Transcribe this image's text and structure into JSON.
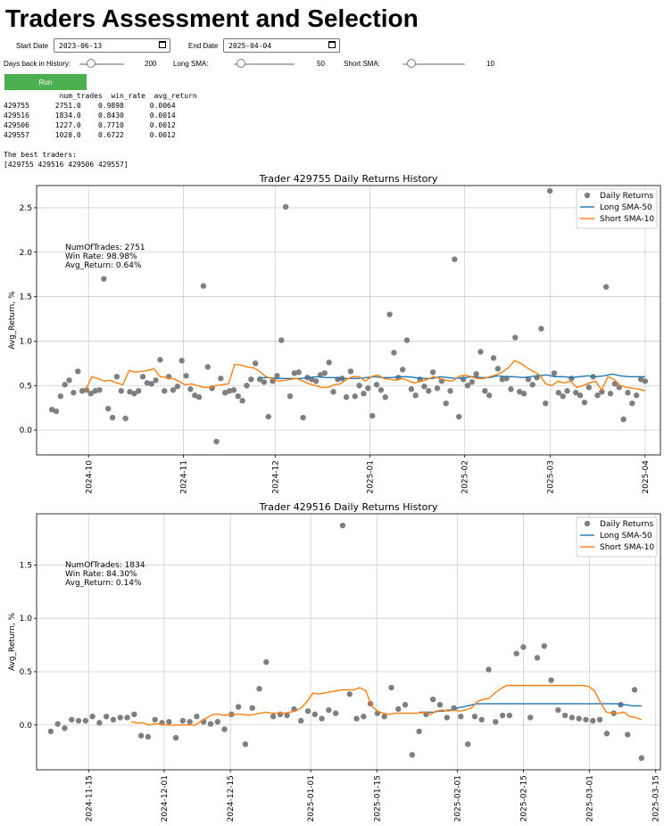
{
  "page": {
    "title": "Traders Assessment and Selection"
  },
  "controls": {
    "start_date_label": "Start Date",
    "start_date_value": "2023-06-13",
    "end_date_label": "End Date",
    "end_date_value": "2025-04-04",
    "days_back_label": "Days back in History:",
    "days_back_value": "200",
    "days_back_fraction": 0.2,
    "long_sma_label": "Long SMA:",
    "long_sma_value": "50",
    "long_sma_fraction": 0.05,
    "short_sma_label": "Short SMA:",
    "short_sma_value": "10",
    "short_sma_fraction": 0.09,
    "run_label": "Run"
  },
  "output": {
    "header": "             num_trades  win_rate  avg_return",
    "rows": [
      "429755      2751.0    0.9898      0.0064",
      "429516      1834.0    0.8430      0.0014",
      "429506      1227.0    0.7710      0.0012",
      "429557      1028.0    0.6722      0.0012"
    ],
    "best_label": "The best traders:",
    "best_value": "[429755 429516 429506 429557]"
  },
  "colors": {
    "scatter": "#7f7f7f",
    "long_sma": "#1f77b4",
    "short_sma": "#ff7f0e",
    "grid": "#cfcfcf",
    "run_button": "#4caf50"
  },
  "chart_data": [
    {
      "type": "scatter",
      "title": "Trader 429755 Daily Returns History",
      "ylabel": "Avg_Return, %",
      "xlabel": "",
      "x_start": "2024-09-19",
      "x_end": "2025-04-01",
      "xlim": [
        "2024-09-14",
        "2025-04-06"
      ],
      "ylim": [
        -0.28,
        2.75
      ],
      "yticks": [
        0.0,
        0.5,
        1.0,
        1.5,
        2.0,
        2.5
      ],
      "ytick_labels": [
        "0.0",
        "0.5",
        "1.0",
        "1.5",
        "2.0",
        "2.5"
      ],
      "xticks": [
        "2024-10-01",
        "2024-11-01",
        "2024-12-01",
        "2025-01-01",
        "2025-02-01",
        "2025-03-01",
        "2025-04-01"
      ],
      "xtick_labels": [
        "2024-10",
        "2024-11",
        "2024-12",
        "2025-01",
        "2025-02",
        "2025-03",
        "2025-04"
      ],
      "grid": true,
      "legend_position": "top-right",
      "legend": [
        "Daily Returns",
        "Long SMA-50",
        "Short SMA-10"
      ],
      "annotation": [
        "NumOfTrades: 2751",
        "Win Rate:  98.98%",
        "Avg_Return:  0.64%"
      ],
      "series": [
        {
          "name": "Daily Returns",
          "kind": "scatter",
          "values": [
            0.23,
            0.21,
            0.38,
            0.51,
            0.56,
            0.42,
            0.66,
            0.44,
            0.45,
            0.41,
            0.44,
            0.45,
            1.7,
            0.24,
            0.14,
            0.6,
            0.44,
            0.13,
            0.43,
            0.41,
            0.44,
            0.6,
            0.53,
            0.52,
            0.56,
            0.79,
            0.44,
            0.6,
            0.45,
            0.49,
            0.78,
            0.61,
            0.46,
            0.39,
            0.37,
            1.62,
            0.71,
            0.47,
            -0.13,
            0.58,
            0.42,
            0.44,
            0.45,
            0.38,
            0.33,
            0.5,
            0.57,
            0.75,
            0.57,
            0.54,
            0.15,
            0.55,
            0.61,
            1.01,
            2.51,
            0.38,
            0.64,
            0.65,
            0.14,
            0.59,
            0.57,
            0.55,
            0.62,
            0.64,
            0.76,
            0.43,
            0.57,
            0.58,
            0.37,
            0.66,
            0.38,
            0.5,
            0.41,
            0.47,
            0.16,
            0.51,
            0.45,
            0.37,
            1.3,
            0.87,
            0.59,
            0.68,
            1.01,
            0.46,
            0.39,
            0.57,
            0.49,
            0.44,
            0.65,
            0.47,
            0.55,
            0.3,
            0.44,
            1.92,
            0.15,
            0.57,
            0.5,
            0.54,
            0.63,
            0.88,
            0.44,
            0.39,
            0.81,
            0.69,
            0.57,
            0.58,
            0.46,
            1.04,
            0.43,
            0.41,
            0.57,
            0.51,
            0.59,
            1.14,
            0.3,
            2.69,
            0.64,
            0.42,
            0.38,
            0.44,
            0.58,
            0.42,
            0.39,
            0.31,
            0.48,
            0.6,
            0.39,
            0.43,
            1.61,
            0.41,
            0.52,
            0.48,
            0.12,
            0.42,
            0.3,
            0.39,
            0.57,
            0.55
          ]
        },
        {
          "name": "Long SMA-50",
          "kind": "line",
          "x_start": "2024-11-26",
          "x_end": "2025-04-01",
          "values": [
            0.59,
            0.59,
            0.58,
            0.58,
            0.58,
            0.58,
            0.59,
            0.6,
            0.59,
            0.59,
            0.58,
            0.58,
            0.58,
            0.59,
            0.6,
            0.59,
            0.59,
            0.6,
            0.6,
            0.59,
            0.58,
            0.58,
            0.6,
            0.59,
            0.58,
            0.59,
            0.6,
            0.59,
            0.59,
            0.61,
            0.6,
            0.6,
            0.59,
            0.6,
            0.61,
            0.62,
            0.6,
            0.6,
            0.59,
            0.6,
            0.61,
            0.6,
            0.61,
            0.63,
            0.61,
            0.6,
            0.6,
            0.6
          ]
        },
        {
          "name": "Short SMA-10",
          "kind": "line",
          "x_start": "2024-09-30",
          "values": [
            0.44,
            0.6,
            0.58,
            0.55,
            0.56,
            0.53,
            0.51,
            0.67,
            0.65,
            0.66,
            0.67,
            0.69,
            0.6,
            0.59,
            0.58,
            0.55,
            0.51,
            0.52,
            0.5,
            0.48,
            0.48,
            0.5,
            0.51,
            0.52,
            0.74,
            0.73,
            0.71,
            0.7,
            0.66,
            0.6,
            0.58,
            0.55,
            0.56,
            0.57,
            0.58,
            0.55,
            0.52,
            0.5,
            0.48,
            0.48,
            0.51,
            0.52,
            0.57,
            0.6,
            0.6,
            0.55,
            0.6,
            0.62,
            0.58,
            0.57,
            0.56,
            0.58,
            0.55,
            0.53,
            0.55,
            0.57,
            0.6,
            0.58,
            0.56,
            0.55,
            0.6,
            0.62,
            0.6,
            0.58,
            0.58,
            0.6,
            0.62,
            0.65,
            0.7,
            0.78,
            0.75,
            0.7,
            0.66,
            0.62,
            0.52,
            0.5,
            0.55,
            0.53,
            0.55,
            0.48,
            0.5,
            0.53,
            0.55,
            0.45,
            0.6,
            0.57,
            0.5,
            0.48,
            0.47,
            0.46,
            0.44
          ]
        }
      ]
    },
    {
      "type": "scatter",
      "title": "Trader 429516 Daily Returns History",
      "ylabel": "Avg_Return, %",
      "xlabel": "",
      "x_start": "2024-11-07",
      "x_end": "2025-03-12",
      "xlim": [
        "2024-11-04",
        "2025-03-16"
      ],
      "ylim": [
        -0.42,
        1.98
      ],
      "yticks": [
        0.0,
        0.5,
        1.0,
        1.5
      ],
      "ytick_labels": [
        "0.0",
        "0.5",
        "1.0",
        "1.5"
      ],
      "xticks": [
        "2024-11-15",
        "2024-12-01",
        "2024-12-15",
        "2025-01-01",
        "2025-01-15",
        "2025-02-01",
        "2025-02-15",
        "2025-03-01",
        "2025-03-15"
      ],
      "xtick_labels": [
        "2024-11-15",
        "2024-12-01",
        "2024-12-15",
        "2025-01-01",
        "2025-01-15",
        "2025-02-01",
        "2025-02-15",
        "2025-03-01",
        "2025-03-15"
      ],
      "grid": true,
      "legend_position": "top-right",
      "legend": [
        "Daily Returns",
        "Long SMA-50",
        "Short SMA-10"
      ],
      "annotation": [
        "NumOfTrades: 1834",
        "Win Rate:  84.30%",
        "Avg_Return:  0.14%"
      ],
      "series": [
        {
          "name": "Daily Returns",
          "kind": "scatter",
          "values": [
            -0.06,
            0.01,
            -0.03,
            0.05,
            0.04,
            0.04,
            0.08,
            0.02,
            0.08,
            0.05,
            0.07,
            0.07,
            0.1,
            -0.1,
            -0.11,
            0.05,
            0.02,
            0.03,
            -0.12,
            0.04,
            0.03,
            0.08,
            0.03,
            0.01,
            0.03,
            -0.04,
            0.1,
            0.17,
            -0.18,
            0.16,
            0.34,
            0.59,
            0.08,
            0.1,
            0.09,
            0.15,
            0.04,
            0.13,
            0.1,
            0.06,
            0.14,
            0.11,
            1.87,
            0.29,
            0.06,
            0.08,
            0.2,
            0.11,
            0.08,
            0.35,
            0.15,
            0.19,
            -0.28,
            -0.06,
            0.1,
            0.24,
            0.19,
            0.07,
            0.16,
            0.08,
            -0.18,
            0.08,
            0.05,
            0.52,
            0.03,
            0.09,
            0.09,
            0.67,
            0.73,
            0.07,
            0.63,
            0.74,
            0.42,
            0.14,
            0.09,
            0.07,
            0.06,
            0.05,
            0.04,
            0.05,
            -0.08,
            0.11,
            0.19,
            -0.09,
            0.33,
            -0.31
          ]
        },
        {
          "name": "Long SMA-50",
          "kind": "line",
          "x_start": "2025-01-24",
          "values": [
            0.12,
            0.12,
            0.12,
            0.12,
            0.13,
            0.13,
            0.14,
            0.14,
            0.16,
            0.17,
            0.18,
            0.19,
            0.2,
            0.2,
            0.2,
            0.2,
            0.2,
            0.2,
            0.2,
            0.2,
            0.2,
            0.2,
            0.2,
            0.2,
            0.2,
            0.2,
            0.2,
            0.2,
            0.2,
            0.2,
            0.2,
            0.2,
            0.2,
            0.2,
            0.2,
            0.2,
            0.2,
            0.2,
            0.2,
            0.2,
            0.2,
            0.2,
            0.19,
            0.19,
            0.18,
            0.18,
            0.18
          ]
        },
        {
          "name": "Short SMA-10",
          "kind": "line",
          "x_start": "2024-11-24",
          "values": [
            0.03,
            0.02,
            0.02,
            0.0,
            0.01,
            0.01,
            0.0,
            0.0,
            0.0,
            0.0,
            0.0,
            0.0,
            0.04,
            0.07,
            0.1,
            0.1,
            0.09,
            0.1,
            0.1,
            0.1,
            0.09,
            0.1,
            0.11,
            0.12,
            0.11,
            0.11,
            0.11,
            0.12,
            0.13,
            0.16,
            0.22,
            0.3,
            0.29,
            0.3,
            0.31,
            0.32,
            0.33,
            0.33,
            0.33,
            0.35,
            0.32,
            0.18,
            0.13,
            0.11,
            0.1,
            0.11,
            0.11,
            0.11,
            0.11,
            0.11,
            0.12,
            0.1,
            0.13,
            0.14,
            0.13,
            0.14,
            0.13,
            0.14,
            0.16,
            0.22,
            0.24,
            0.25,
            0.3,
            0.34,
            0.37,
            0.37,
            0.37,
            0.37,
            0.37,
            0.37,
            0.37,
            0.37,
            0.37,
            0.37,
            0.37,
            0.37,
            0.37,
            0.37,
            0.36,
            0.32,
            0.21,
            0.12,
            0.11,
            0.11,
            0.12,
            0.08,
            0.07,
            0.05
          ]
        }
      ]
    }
  ]
}
